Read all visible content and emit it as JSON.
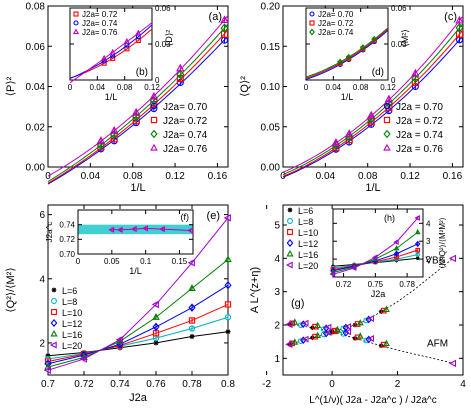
{
  "chart_data": [
    {
      "type": "scatter",
      "panel_label": "(a)",
      "ylabel": "⟨P⟩²",
      "xlabel": "1/L",
      "xlim": [
        0,
        0.17
      ],
      "ylim": [
        0,
        0.08
      ],
      "xticks": [
        "0",
        "0.04",
        "0.08",
        "0.12",
        "0.16"
      ],
      "yticks": [
        "0.00",
        "0.02",
        "0.04",
        "0.06",
        "0.08"
      ],
      "legend_position": "bottom-right",
      "series": [
        {
          "name": "J2a= 0.70",
          "color": "#0000ff",
          "marker": "circle",
          "x": [
            0.05,
            0.0625,
            0.0833,
            0.1,
            0.125,
            0.1667
          ],
          "y": [
            0.009,
            0.013,
            0.022,
            0.029,
            0.042,
            0.063
          ]
        },
        {
          "name": "J2a= 0.72",
          "color": "#ff0000",
          "marker": "square",
          "x": [
            0.05,
            0.0625,
            0.0833,
            0.1,
            0.125,
            0.1667
          ],
          "y": [
            0.01,
            0.014,
            0.023,
            0.031,
            0.044,
            0.066
          ]
        },
        {
          "name": "J2a= 0.74",
          "color": "#008000",
          "marker": "diamond",
          "x": [
            0.05,
            0.0625,
            0.0833,
            0.1,
            0.125,
            0.1667
          ],
          "y": [
            0.011,
            0.016,
            0.025,
            0.033,
            0.046,
            0.069
          ]
        },
        {
          "name": "J2a= 0.76",
          "color": "#c000c0",
          "marker": "triangle",
          "x": [
            0.05,
            0.0625,
            0.0833,
            0.1,
            0.125,
            0.1667
          ],
          "y": [
            0.013,
            0.018,
            0.027,
            0.035,
            0.049,
            0.073
          ]
        }
      ],
      "inset": {
        "panel_label": "(b)",
        "ylabel": "⟨D⟩²",
        "xlabel": "1/L",
        "xlim": [
          0,
          0.12
        ],
        "ylim": [
          0,
          0.06
        ],
        "xticks": [
          "0",
          "0.04",
          "0.08",
          "0.12"
        ],
        "yticks": [
          "0",
          "0.03",
          "0.06"
        ],
        "legend_position": "top-left",
        "series": [
          {
            "name": "J2a= 0.72",
            "color": "#ff0000",
            "marker": "square",
            "x": [
              0.05,
              0.0625,
              0.0833,
              0.1
            ],
            "y": [
              0.014,
              0.018,
              0.026,
              0.033
            ]
          },
          {
            "name": "J2a= 0.74",
            "color": "#0000ff",
            "marker": "circle",
            "x": [
              0.05,
              0.0625,
              0.0833,
              0.1
            ],
            "y": [
              0.016,
              0.02,
              0.029,
              0.036
            ]
          },
          {
            "name": "J2a= 0.76",
            "color": "#c000c0",
            "marker": "triangle",
            "x": [
              0.05,
              0.0625,
              0.0833,
              0.1
            ],
            "y": [
              0.018,
              0.023,
              0.032,
              0.039
            ]
          }
        ]
      }
    },
    {
      "type": "scatter",
      "panel_label": "(c)",
      "ylabel": "⟨Q⟩²",
      "xlabel": "1/L",
      "xlim": [
        0,
        0.17
      ],
      "ylim": [
        0,
        0.2
      ],
      "xticks": [
        "0",
        "0.04",
        "0.08",
        "0.12",
        "0.16"
      ],
      "yticks": [
        "0.00",
        "0.05",
        "0.10",
        "0.15",
        "0.20"
      ],
      "legend_position": "bottom-right",
      "series": [
        {
          "name": "J2a = 0.70",
          "color": "#0000ff",
          "marker": "circle",
          "x": [
            0.05,
            0.0625,
            0.0833,
            0.1,
            0.125,
            0.1667
          ],
          "y": [
            0.022,
            0.031,
            0.053,
            0.07,
            0.1,
            0.158
          ]
        },
        {
          "name": "J2a = 0.72",
          "color": "#ff0000",
          "marker": "square",
          "x": [
            0.05,
            0.0625,
            0.0833,
            0.1,
            0.125,
            0.1667
          ],
          "y": [
            0.024,
            0.034,
            0.056,
            0.074,
            0.105,
            0.165
          ]
        },
        {
          "name": "J2a = 0.74",
          "color": "#008000",
          "marker": "diamond",
          "x": [
            0.05,
            0.0625,
            0.0833,
            0.1,
            0.125,
            0.1667
          ],
          "y": [
            0.027,
            0.037,
            0.06,
            0.079,
            0.11,
            0.173
          ]
        },
        {
          "name": "J2a = 0.76",
          "color": "#c000c0",
          "marker": "triangle",
          "x": [
            0.05,
            0.0625,
            0.0833,
            0.1,
            0.125,
            0.1667
          ],
          "y": [
            0.03,
            0.041,
            0.064,
            0.084,
            0.116,
            0.182
          ]
        }
      ],
      "inset": {
        "panel_label": "(d)",
        "ylabel": "⟨M²⟩",
        "xlabel": "1/L",
        "xlim": [
          0,
          0.12
        ],
        "ylim": [
          0,
          0.06
        ],
        "xticks": [
          "0",
          "0.04",
          "0.08",
          "0.12"
        ],
        "yticks": [
          "0",
          "0.03",
          "0.06"
        ],
        "legend_position": "top-left",
        "series": [
          {
            "name": "J2a= 0.70",
            "color": "#0000ff",
            "marker": "circle",
            "x": [
              0.05,
              0.0625,
              0.0833,
              0.1
            ],
            "y": [
              0.013,
              0.017,
              0.025,
              0.032
            ]
          },
          {
            "name": "J2a= 0.72",
            "color": "#ff0000",
            "marker": "square",
            "x": [
              0.05,
              0.0625,
              0.0833,
              0.1
            ],
            "y": [
              0.014,
              0.018,
              0.026,
              0.033
            ]
          },
          {
            "name": "J2a= 0.74",
            "color": "#008000",
            "marker": "diamond",
            "x": [
              0.05,
              0.0625,
              0.0833,
              0.1
            ],
            "y": [
              0.015,
              0.019,
              0.027,
              0.034
            ]
          }
        ]
      }
    },
    {
      "type": "line",
      "panel_label": "(e)",
      "ylabel": "⟨Q²⟩/⟨M²⟩",
      "xlabel": "J2a",
      "xlim": [
        0.7,
        0.8
      ],
      "ylim": [
        1,
        6.3
      ],
      "xticks": [
        "0.7",
        "0.72",
        "0.74",
        "0.76",
        "0.78",
        "0.8"
      ],
      "yticks": [
        "2",
        "4",
        "6"
      ],
      "legend_position": "bottom-left",
      "series": [
        {
          "name": "L=6",
          "color": "#000000",
          "marker": "star",
          "x": [
            0.7,
            0.72,
            0.74,
            0.76,
            0.78,
            0.8
          ],
          "y": [
            1.6,
            1.7,
            1.85,
            2.0,
            2.2,
            2.35
          ]
        },
        {
          "name": "L=8",
          "color": "#00b0c0",
          "marker": "circle",
          "x": [
            0.7,
            0.72,
            0.74,
            0.76,
            0.78,
            0.8
          ],
          "y": [
            1.5,
            1.67,
            1.9,
            2.15,
            2.45,
            2.8
          ]
        },
        {
          "name": "L=10",
          "color": "#ff0000",
          "marker": "square",
          "x": [
            0.7,
            0.72,
            0.74,
            0.76,
            0.78,
            0.8
          ],
          "y": [
            1.42,
            1.65,
            1.92,
            2.3,
            2.7,
            3.2
          ]
        },
        {
          "name": "L=12",
          "color": "#0000ff",
          "marker": "diamond",
          "x": [
            0.7,
            0.72,
            0.74,
            0.76,
            0.78,
            0.8
          ],
          "y": [
            1.35,
            1.62,
            1.96,
            2.5,
            3.1,
            3.8
          ]
        },
        {
          "name": "L=16",
          "color": "#008000",
          "marker": "triangle",
          "x": [
            0.7,
            0.72,
            0.74,
            0.76,
            0.78,
            0.8
          ],
          "y": [
            1.25,
            1.55,
            2.05,
            2.8,
            3.7,
            4.6
          ]
        },
        {
          "name": "L=20",
          "color": "#a000d0",
          "marker": "triangle-left",
          "x": [
            0.7,
            0.72,
            0.74,
            0.76,
            0.78,
            0.8
          ],
          "y": [
            1.15,
            1.5,
            2.1,
            3.2,
            4.5,
            5.9
          ]
        }
      ],
      "inset": {
        "panel_label": "(f)",
        "ylabel": "J2a^c",
        "xlabel": "1/L",
        "xlim": [
          0,
          0.17
        ],
        "ylim": [
          0.7,
          0.76
        ],
        "xticks": [
          "0",
          "0.05",
          "0.1",
          "0.15"
        ],
        "yticks": [
          "0.70",
          "0.72",
          "0.74"
        ],
        "band": [
          0.727,
          0.74
        ],
        "band_color": "#40d0d0",
        "series": [
          {
            "name": "",
            "color": "#c000c0",
            "marker": "triangle-left",
            "x": [
              0.05,
              0.0625,
              0.0833,
              0.1,
              0.125,
              0.1667
            ],
            "y": [
              0.733,
              0.733,
              0.734,
              0.735,
              0.734,
              0.732
            ]
          }
        ]
      }
    },
    {
      "type": "scatter",
      "panel_label": "(g)",
      "ylabel": "A L^(z+η)",
      "xlabel": "L^(1/ν)( J2a - J2a^c ) / J2a^c",
      "xlim": [
        -1.5,
        4
      ],
      "ylim": [
        0.5,
        5.6
      ],
      "xticks": [
        "-2",
        "0",
        "2",
        "4"
      ],
      "yticks": [
        "1",
        "2",
        "3",
        "4",
        "5"
      ],
      "annotations": [
        "VBS",
        "AFM"
      ],
      "legend_position": "top-left",
      "series": [
        {
          "name": "L=6",
          "color": "#000000",
          "marker": "star"
        },
        {
          "name": "L=8",
          "color": "#00b0c0",
          "marker": "circle"
        },
        {
          "name": "L=10",
          "color": "#ff0000",
          "marker": "square"
        },
        {
          "name": "L=12",
          "color": "#0000ff",
          "marker": "diamond"
        },
        {
          "name": "L=16",
          "color": "#008000",
          "marker": "triangle"
        },
        {
          "name": "L=20",
          "color": "#a000d0",
          "marker": "triangle-left"
        }
      ],
      "vbs_curve": {
        "x": [
          -1.3,
          -1.0,
          -0.6,
          -0.3,
          0.0,
          0.3,
          0.7,
          1.0,
          1.5,
          2.0,
          2.5,
          3.0,
          3.7
        ],
        "y": [
          1.42,
          1.5,
          1.62,
          1.7,
          1.78,
          1.88,
          2.0,
          2.12,
          2.4,
          2.7,
          3.05,
          3.45,
          4.0
        ]
      },
      "afm_curve": {
        "x": [
          -1.3,
          -1.0,
          -0.6,
          -0.3,
          0.0,
          0.3,
          0.7,
          1.0,
          1.5,
          2.0,
          2.5,
          3.0,
          3.7
        ],
        "y": [
          2.02,
          1.98,
          1.92,
          1.86,
          1.8,
          1.72,
          1.6,
          1.52,
          1.38,
          1.25,
          1.13,
          1.02,
          0.85
        ]
      },
      "inset": {
        "panel_label": "(h)",
        "ylabel": "⟨M²Q²⟩/⟨M²M²⟩",
        "xlabel": "J2a",
        "xlim": [
          0.71,
          0.795
        ],
        "ylim": [
          1.0,
          4.8
        ],
        "xticks": [
          "0.72",
          "0.75",
          "0.78"
        ],
        "yticks": [
          "2",
          "3",
          "4"
        ],
        "series": [
          {
            "name": "L=6",
            "color": "#000000",
            "marker": "star",
            "x": [
              0.71,
              0.73,
              0.75,
              0.77,
              0.79
            ],
            "y": [
              1.6,
              1.7,
              1.8,
              1.92,
              2.05
            ]
          },
          {
            "name": "L=8",
            "color": "#00b0c0",
            "marker": "circle",
            "x": [
              0.71,
              0.73,
              0.75,
              0.77,
              0.79
            ],
            "y": [
              1.5,
              1.65,
              1.82,
              2.0,
              2.25
            ]
          },
          {
            "name": "L=10",
            "color": "#ff0000",
            "marker": "square",
            "x": [
              0.71,
              0.73,
              0.75,
              0.77,
              0.79
            ],
            "y": [
              1.42,
              1.62,
              1.85,
              2.12,
              2.5
            ]
          },
          {
            "name": "L=12",
            "color": "#0000ff",
            "marker": "diamond",
            "x": [
              0.71,
              0.73,
              0.75,
              0.77,
              0.79
            ],
            "y": [
              1.35,
              1.6,
              1.9,
              2.3,
              2.85
            ]
          },
          {
            "name": "L=16",
            "color": "#008000",
            "marker": "triangle",
            "x": [
              0.71,
              0.73,
              0.75,
              0.77,
              0.79
            ],
            "y": [
              1.25,
              1.55,
              2.0,
              2.6,
              3.5
            ]
          },
          {
            "name": "L=20",
            "color": "#a000d0",
            "marker": "triangle-left",
            "x": [
              0.71,
              0.73,
              0.75,
              0.77,
              0.79
            ],
            "y": [
              1.15,
              1.5,
              2.1,
              2.95,
              4.3
            ]
          }
        ]
      }
    }
  ]
}
